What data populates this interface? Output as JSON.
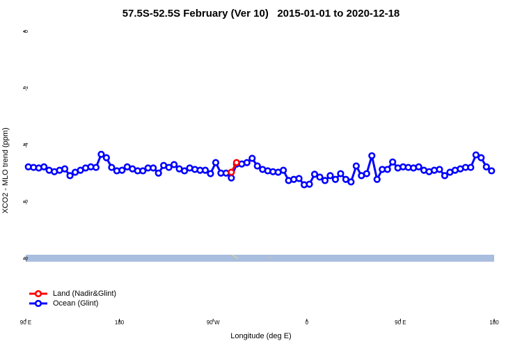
{
  "chart_data": {
    "type": "line",
    "title": "57.5S-52.5S February (Ver 10)   2015-01-01 to 2020-12-18",
    "x_label": "Longitude (deg E)",
    "y_label": "XCO2 - MLO trend (ppm)",
    "xlim": [
      90,
      540
    ],
    "ylim": [
      -10.1,
      0.2
    ],
    "xticks": [
      {
        "value": 90,
        "label": "90 E"
      },
      180,
      {
        "value": 270,
        "label": "90 W"
      },
      {
        "value": 360,
        "label": "0"
      },
      {
        "value": 450,
        "label": "90 E"
      },
      {
        "value": 540,
        "label": "180"
      }
    ],
    "yticks": [
      0,
      -2,
      -4,
      -6,
      -8
    ],
    "legend": "bottom-left",
    "series": [
      {
        "name": "Land (Nadir&Glint)",
        "color": "#ff0000",
        "x": [
          287.5,
          292.5
        ],
        "values": [
          -4.95,
          -4.61
        ]
      },
      {
        "name": "Ocean (Glint)",
        "color": "#0000ff",
        "x": [
          92.5,
          97.5,
          102.5,
          107.5,
          112.5,
          117.5,
          122.5,
          127.5,
          132.5,
          137.5,
          142.5,
          147.5,
          152.5,
          157.5,
          162.5,
          167.5,
          172.5,
          177.5,
          182.5,
          187.5,
          192.5,
          197.5,
          202.5,
          207.5,
          212.5,
          217.5,
          222.5,
          227.5,
          232.5,
          237.5,
          242.5,
          247.5,
          252.5,
          257.5,
          262.5,
          267.5,
          272.5,
          277.5,
          282.5,
          287.5,
          292.5,
          297.5,
          302.5,
          307.5,
          312.5,
          317.5,
          322.5,
          327.5,
          332.5,
          337.5,
          342.5,
          347.5,
          352.5,
          357.5,
          362.5,
          367.5,
          372.5,
          377.5,
          382.5,
          387.5,
          392.5,
          397.5,
          402.5,
          407.5,
          412.5,
          417.5,
          422.5,
          427.5,
          432.5,
          437.5,
          442.5,
          447.5,
          452.5,
          457.5,
          462.5,
          467.5,
          472.5,
          477.5,
          482.5,
          487.5,
          492.5,
          497.5,
          502.5,
          507.5,
          512.5,
          517.5,
          522.5,
          527.5,
          532.5,
          537.5
        ],
        "values": [
          -4.76,
          -4.78,
          -4.8,
          -4.76,
          -4.88,
          -4.93,
          -4.88,
          -4.83,
          -5.07,
          -4.95,
          -4.88,
          -4.8,
          -4.76,
          -4.78,
          -4.32,
          -4.44,
          -4.78,
          -4.9,
          -4.88,
          -4.76,
          -4.83,
          -4.9,
          -4.9,
          -4.8,
          -4.8,
          -4.98,
          -4.71,
          -4.78,
          -4.68,
          -4.83,
          -4.9,
          -4.8,
          -4.85,
          -4.88,
          -4.88,
          -5.0,
          -4.61,
          -4.98,
          -4.98,
          -5.15,
          -4.66,
          -4.66,
          -4.61,
          -4.46,
          -4.73,
          -4.85,
          -4.9,
          -4.93,
          -4.95,
          -4.88,
          -5.24,
          -5.2,
          -5.17,
          -5.39,
          -5.37,
          -5.02,
          -5.12,
          -5.24,
          -5.07,
          -5.2,
          -5.0,
          -5.2,
          -5.29,
          -4.73,
          -5.07,
          -5.0,
          -4.37,
          -5.2,
          -4.85,
          -4.85,
          -4.59,
          -4.8,
          -4.76,
          -4.78,
          -4.8,
          -4.76,
          -4.88,
          -4.93,
          -4.88,
          -4.85,
          -5.07,
          -4.95,
          -4.88,
          -4.83,
          -4.78,
          -4.78,
          -4.34,
          -4.44,
          -4.76,
          -4.9
        ]
      }
    ]
  }
}
